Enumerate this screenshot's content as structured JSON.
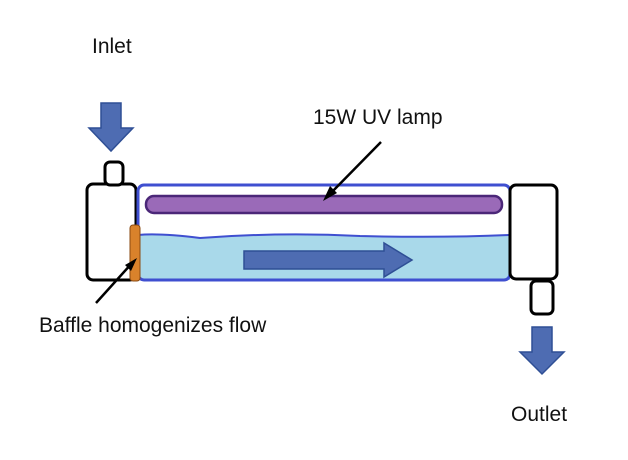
{
  "labels": {
    "inlet": "Inlet",
    "lamp": "15W UV lamp",
    "baffle": "Baffle homogenizes flow",
    "outlet": "Outlet"
  },
  "colors": {
    "arrow_fill": "#4e6cb2",
    "arrow_stroke": "#2f4f95",
    "water": "#a9d9ea",
    "tube_outline": "#3f4fd0",
    "lamp_fill": "#9a6ab8",
    "lamp_stroke": "#4b2778",
    "baffle": "#d9822b",
    "outline": "#000000"
  },
  "icons": {
    "inlet_arrow": "arrow-down-icon",
    "outlet_arrow": "arrow-down-icon",
    "flow_arrow": "arrow-right-icon"
  }
}
